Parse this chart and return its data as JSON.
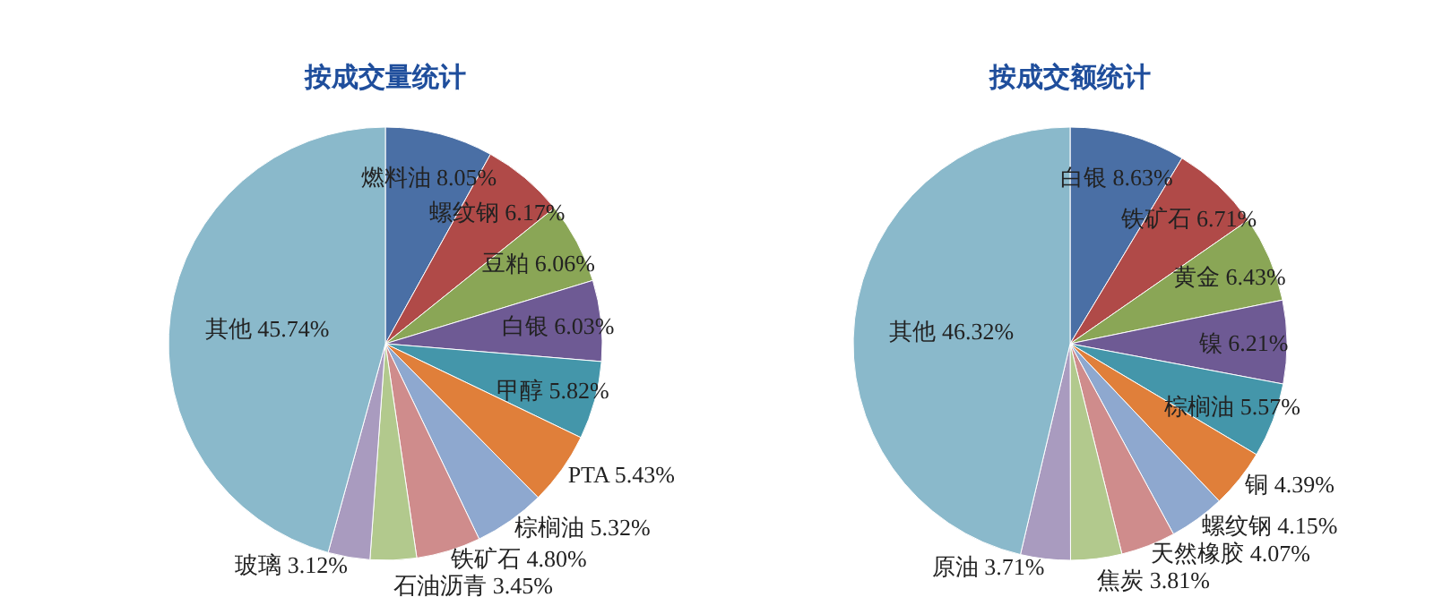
{
  "chart_data": [
    {
      "type": "pie",
      "title": "按成交量统计",
      "categories": [
        "燃料油",
        "螺纹钢",
        "豆粕",
        "白银",
        "甲醇",
        "PTA",
        "棕榈油",
        "铁矿石",
        "石油沥青",
        "玻璃",
        "其他"
      ],
      "values": [
        8.05,
        6.17,
        6.06,
        6.03,
        5.82,
        5.43,
        5.32,
        4.8,
        3.45,
        3.12,
        45.74
      ],
      "value_labels": [
        "8.05%",
        "6.17%",
        "6.06%",
        "6.03%",
        "5.82%",
        "5.43%",
        "5.32%",
        "4.80%",
        "3.45%",
        "3.12%",
        "45.74%"
      ],
      "colors": [
        "#4a6fa5",
        "#b04a48",
        "#8aa656",
        "#6e5a94",
        "#4496aa",
        "#e07f3a",
        "#8ea8cf",
        "#cf8c8c",
        "#b2c98d",
        "#a99bbf",
        "#8ab9cb"
      ]
    },
    {
      "type": "pie",
      "title": "按成交额统计",
      "categories": [
        "白银",
        "铁矿石",
        "黄金",
        "镍",
        "棕榈油",
        "铜",
        "螺纹钢",
        "天然橡胶",
        "焦炭",
        "原油",
        "其他"
      ],
      "values": [
        8.63,
        6.71,
        6.43,
        6.21,
        5.57,
        4.39,
        4.15,
        4.07,
        3.81,
        3.71,
        46.32
      ],
      "value_labels": [
        "8.63%",
        "6.71%",
        "6.43%",
        "6.21%",
        "5.57%",
        "4.39%",
        "4.15%",
        "4.07%",
        "3.81%",
        "3.71%",
        "46.32%"
      ],
      "colors": [
        "#4a6fa5",
        "#b04a48",
        "#8aa656",
        "#6e5a94",
        "#4496aa",
        "#e07f3a",
        "#8ea8cf",
        "#cf8c8c",
        "#b2c98d",
        "#a99bbf",
        "#8ab9cb"
      ]
    }
  ]
}
